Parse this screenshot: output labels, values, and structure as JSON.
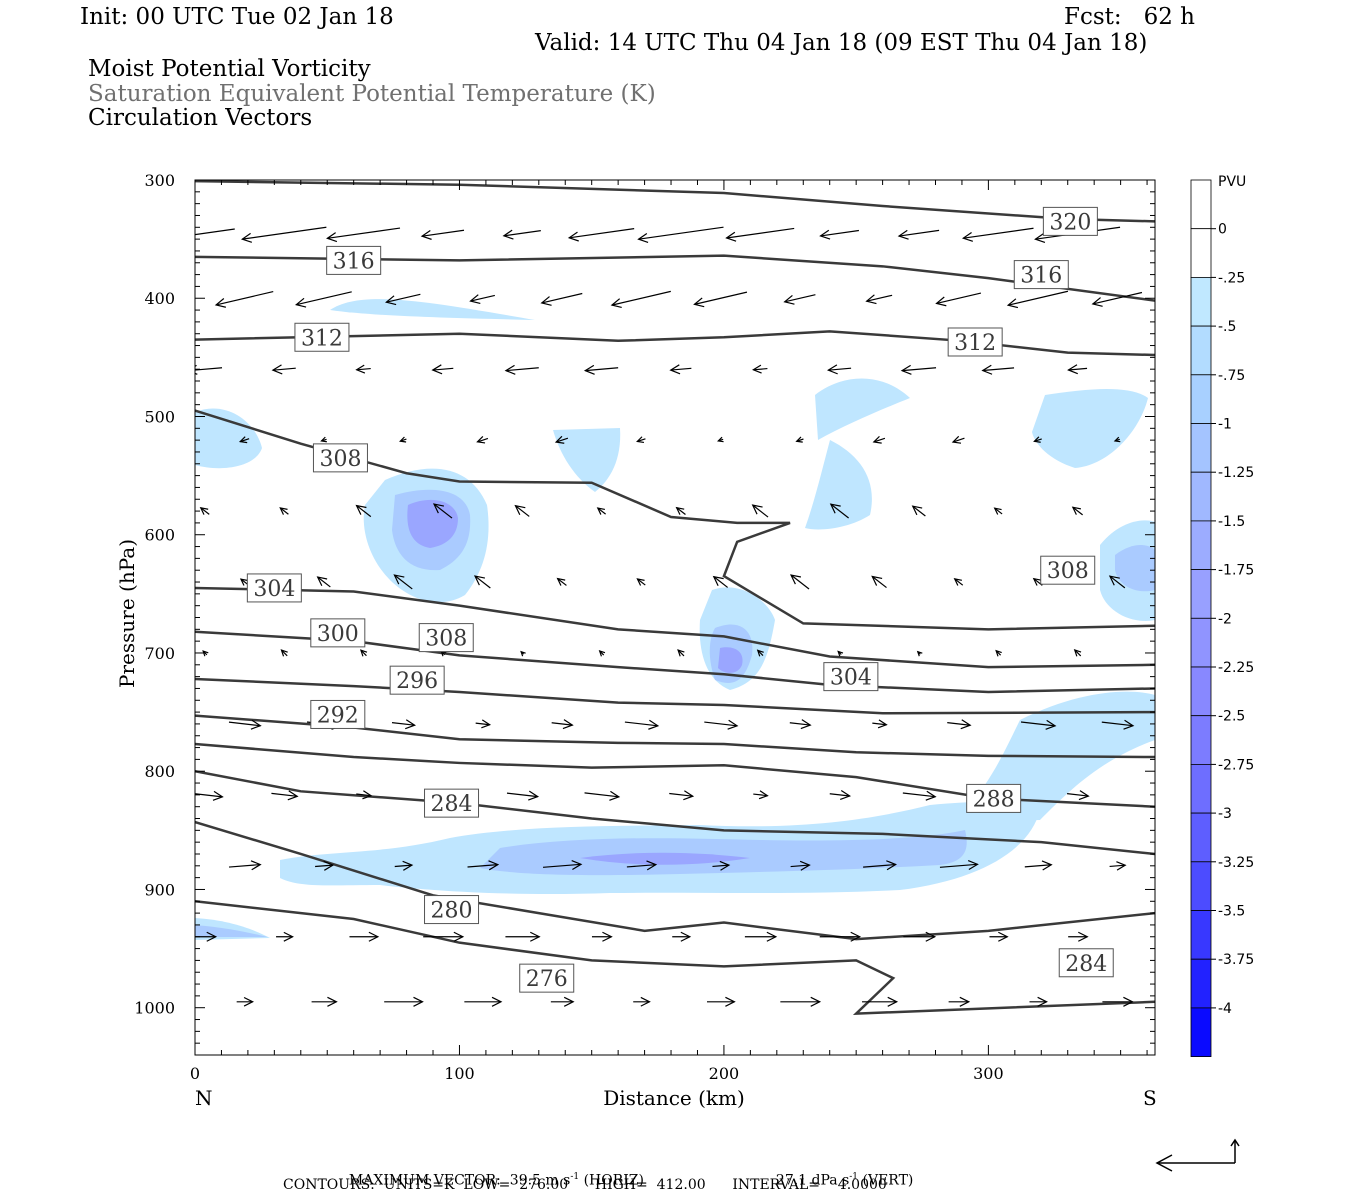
{
  "header": {
    "init": "Init: 00 UTC Tue 02 Jan 18",
    "fcst": "Fcst:   62 h",
    "valid": "Valid: 14 UTC Thu 04 Jan 18 (09 EST Thu 04 Jan 18)",
    "field1": "Moist Potential Vorticity",
    "field2": "Saturation Equivalent Potential Temperature (K)",
    "field3": "Circulation Vectors"
  },
  "footer": {
    "max_vector_label": "MAXIMUM VECTOR:",
    "max_horiz_value": "39.5 m s",
    "max_horiz_exp": "-1",
    "max_horiz_unit": "(HORIZ)",
    "max_vert_value": "27.1 dPa s",
    "max_vert_exp": "-1",
    "max_vert_unit": "(VERT)",
    "contours": "CONTOURS:  UNITS=K  LOW=  276.00      HIGH=  412.00      INTERVAL=    4.0000"
  },
  "colors": {
    "contour": "#3a3a3a",
    "light_blue": "#bfe6ff",
    "mid_blue": "#a6c8ff",
    "deep_blue": "#9aa6ff",
    "vector": "#000000"
  },
  "chart_data": {
    "type": "cross-section",
    "xlabel": "Distance (km)",
    "ylabel": "Pressure (hPa)",
    "xlim": [
      0,
      363
    ],
    "ylim": [
      1040,
      300
    ],
    "x_ticks": [
      0,
      100,
      200,
      300
    ],
    "y_ticks": [
      300,
      400,
      500,
      600,
      700,
      800,
      900,
      1000
    ],
    "x_end_labels": {
      "left": "N",
      "right": "S"
    },
    "colorbar": {
      "unit": "PVU",
      "levels": [
        "0",
        "-.25",
        "-.5",
        "-.75",
        "-1",
        "-1.25",
        "-1.5",
        "-1.75",
        "-2",
        "-2.25",
        "-2.5",
        "-2.75",
        "-3",
        "-3.25",
        "-3.5",
        "-3.75",
        "-4"
      ],
      "colors": [
        "#ffffff",
        "#ffffff",
        "#c0e8ff",
        "#b2dcff",
        "#a8d0ff",
        "#a4c4ff",
        "#a0b8ff",
        "#9cacff",
        "#98a0ff",
        "#9094ff",
        "#8888ff",
        "#7c7cff",
        "#6e6eff",
        "#5e5eff",
        "#4c4cff",
        "#3838ff",
        "#2222ff",
        "#0a0aff"
      ]
    },
    "contours": [
      {
        "theta": 320,
        "points": [
          [
            0,
            301
          ],
          [
            100,
            304
          ],
          [
            200,
            311
          ],
          [
            260,
            322
          ],
          [
            330,
            333
          ],
          [
            363,
            335
          ]
        ]
      },
      {
        "theta": 316,
        "points": [
          [
            0,
            365
          ],
          [
            100,
            368
          ],
          [
            200,
            364
          ],
          [
            260,
            373
          ],
          [
            300,
            383
          ],
          [
            363,
            402
          ]
        ]
      },
      {
        "theta": 312,
        "points": [
          [
            0,
            435
          ],
          [
            100,
            430
          ],
          [
            160,
            436
          ],
          [
            200,
            433
          ],
          [
            240,
            428
          ],
          [
            290,
            436
          ],
          [
            330,
            446
          ],
          [
            363,
            448
          ]
        ]
      },
      {
        "theta": 308,
        "points": [
          [
            0,
            495
          ],
          [
            40,
            523
          ],
          [
            80,
            548
          ],
          [
            100,
            555
          ],
          [
            150,
            556
          ],
          [
            180,
            585
          ],
          [
            205,
            590
          ],
          [
            225,
            590
          ],
          [
            205,
            606
          ],
          [
            200,
            635
          ],
          [
            230,
            675
          ],
          [
            300,
            680
          ],
          [
            363,
            677
          ]
        ]
      },
      {
        "theta": 304,
        "points": [
          [
            0,
            645
          ],
          [
            60,
            648
          ],
          [
            100,
            660
          ],
          [
            160,
            680
          ],
          [
            200,
            686
          ],
          [
            240,
            703
          ],
          [
            300,
            712
          ],
          [
            363,
            710
          ]
        ]
      },
      {
        "theta": 300,
        "points": [
          [
            0,
            682
          ],
          [
            60,
            690
          ],
          [
            100,
            702
          ],
          [
            160,
            712
          ],
          [
            200,
            718
          ],
          [
            240,
            727
          ],
          [
            300,
            733
          ],
          [
            363,
            730
          ]
        ]
      },
      {
        "theta": 296,
        "points": [
          [
            0,
            722
          ],
          [
            60,
            728
          ],
          [
            100,
            733
          ],
          [
            160,
            742
          ],
          [
            200,
            744
          ],
          [
            260,
            751
          ],
          [
            363,
            750
          ]
        ]
      },
      {
        "theta": 292,
        "points": [
          [
            0,
            753
          ],
          [
            60,
            763
          ],
          [
            100,
            773
          ],
          [
            160,
            776
          ],
          [
            200,
            777
          ],
          [
            250,
            784
          ],
          [
            300,
            787
          ],
          [
            363,
            788
          ]
        ]
      },
      {
        "theta": 288,
        "points": [
          [
            0,
            777
          ],
          [
            60,
            788
          ],
          [
            100,
            793
          ],
          [
            150,
            797
          ],
          [
            200,
            795
          ],
          [
            250,
            805
          ],
          [
            300,
            823
          ],
          [
            363,
            830
          ]
        ]
      },
      {
        "theta": 284,
        "points": [
          [
            0,
            800
          ],
          [
            40,
            817
          ],
          [
            100,
            827
          ],
          [
            150,
            840
          ],
          [
            200,
            850
          ],
          [
            260,
            853
          ],
          [
            320,
            860
          ],
          [
            363,
            870
          ]
        ]
      },
      {
        "theta": 280,
        "points": [
          [
            0,
            843
          ],
          [
            40,
            870
          ],
          [
            90,
            905
          ],
          [
            130,
            920
          ],
          [
            170,
            935
          ],
          [
            200,
            928
          ],
          [
            250,
            942
          ],
          [
            300,
            935
          ],
          [
            363,
            920
          ]
        ]
      },
      {
        "theta": 276,
        "points": [
          [
            0,
            910
          ],
          [
            60,
            925
          ],
          [
            100,
            945
          ],
          [
            150,
            960
          ],
          [
            200,
            965
          ],
          [
            250,
            960
          ],
          [
            264,
            975
          ],
          [
            250,
            1005
          ],
          [
            363,
            995
          ]
        ]
      }
    ]
  }
}
